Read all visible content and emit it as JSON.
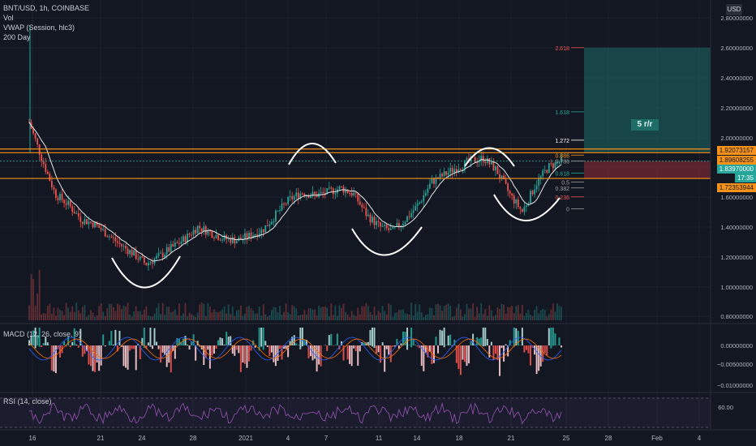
{
  "header": {
    "symbol_line": "BNT/USD, 1h, COINBASE",
    "vol_label": "Vol",
    "vwap_label": "VWAP (Session, hlc3)",
    "ma_label": "200 Day",
    "currency_button": "USD"
  },
  "price_labels": {
    "resistance_1": "1.92073157",
    "resistance_2": "1.89608255",
    "current": "1.83970000",
    "timer": "17:35",
    "stop": "1.72353944"
  },
  "position_label": "5 r/r",
  "fib_levels": [
    "2.618",
    "1.618",
    "1.272",
    "0.886",
    "0.786",
    "0.618",
    "0.5",
    "0.382",
    "0.236",
    "0"
  ],
  "macd": {
    "label": "MACD (12, 26, close, 9)"
  },
  "rsi": {
    "label": "RSI (14, close)"
  },
  "colors": {
    "background": "#131722",
    "candle_up": "#26a69a",
    "candle_down": "#ef5350",
    "ma": "#e6e6e6",
    "resistance_line": "#f7931a",
    "target_zone": "#1e6e67",
    "stop_zone": "#7a2a33",
    "rsi": "#8c4ea6"
  },
  "chart_data": [
    {
      "type": "candlestick",
      "title": "BNT/USD, 1h, COINBASE",
      "x_tick_labels": [
        "16",
        "21",
        "24",
        "28",
        "2021",
        "4",
        "7",
        "11",
        "14",
        "18",
        "21",
        "25",
        "28",
        "Feb",
        "4"
      ],
      "y_tick_labels": [
        "2.80000000",
        "2.60000000",
        "2.40000000",
        "2.20000000",
        "2.00000000",
        "1.80000000",
        "1.60000000",
        "1.40000000",
        "1.20000000",
        "1.00000000",
        "0.80000000"
      ],
      "ylim": [
        0.8,
        2.8
      ],
      "series": [
        {
          "name": "BNT/USD",
          "points": [
            [
              "16",
              2.1
            ],
            [
              "16",
              1.85
            ],
            [
              "17",
              1.62
            ],
            [
              "18",
              1.55
            ],
            [
              "19",
              1.45
            ],
            [
              "20",
              1.42
            ],
            [
              "21",
              1.35
            ],
            [
              "22",
              1.28
            ],
            [
              "23",
              1.22
            ],
            [
              "24",
              1.15
            ],
            [
              "25",
              1.2
            ],
            [
              "26",
              1.26
            ],
            [
              "27",
              1.32
            ],
            [
              "28",
              1.4
            ],
            [
              "29",
              1.36
            ],
            [
              "30",
              1.32
            ],
            [
              "31",
              1.31
            ],
            [
              "2021",
              1.34
            ],
            [
              "2",
              1.38
            ],
            [
              "3",
              1.48
            ],
            [
              "4",
              1.58
            ],
            [
              "5",
              1.63
            ],
            [
              "6",
              1.61
            ],
            [
              "7",
              1.63
            ],
            [
              "8",
              1.66
            ],
            [
              "9",
              1.62
            ],
            [
              "10",
              1.48
            ],
            [
              "11",
              1.4
            ],
            [
              "12",
              1.37
            ],
            [
              "13",
              1.45
            ],
            [
              "14",
              1.55
            ],
            [
              "15",
              1.7
            ],
            [
              "16",
              1.75
            ],
            [
              "17",
              1.8
            ],
            [
              "18",
              1.84
            ],
            [
              "19",
              1.86
            ],
            [
              "20",
              1.78
            ],
            [
              "21",
              1.62
            ],
            [
              "22",
              1.5
            ],
            [
              "23",
              1.68
            ],
            [
              "24",
              1.8
            ],
            [
              "25",
              1.84
            ]
          ]
        },
        {
          "name": "200 Day",
          "points": [
            [
              "16",
              1.8
            ],
            [
              "18",
              1.58
            ],
            [
              "21",
              1.42
            ],
            [
              "24",
              1.3
            ],
            [
              "28",
              1.37
            ],
            [
              "2021",
              1.33
            ],
            [
              "4",
              1.5
            ],
            [
              "7",
              1.6
            ],
            [
              "11",
              1.45
            ],
            [
              "14",
              1.55
            ],
            [
              "18",
              1.81
            ],
            [
              "21",
              1.72
            ],
            [
              "25",
              1.78
            ]
          ]
        }
      ],
      "horizontal_levels": [
        1.92073157,
        1.89608255,
        1.72353944
      ],
      "current_price": 1.8397
    },
    {
      "type": "bar",
      "title": "MACD (12, 26, close, 9)",
      "y_tick_labels": [
        "0.00000000",
        "−0.00500000",
        "−0.01000000"
      ],
      "ylim": [
        -0.012,
        0.005
      ]
    },
    {
      "type": "line",
      "title": "RSI (14, close)",
      "y_tick_labels": [
        "60.00"
      ],
      "ylim": [
        30,
        70
      ]
    }
  ]
}
